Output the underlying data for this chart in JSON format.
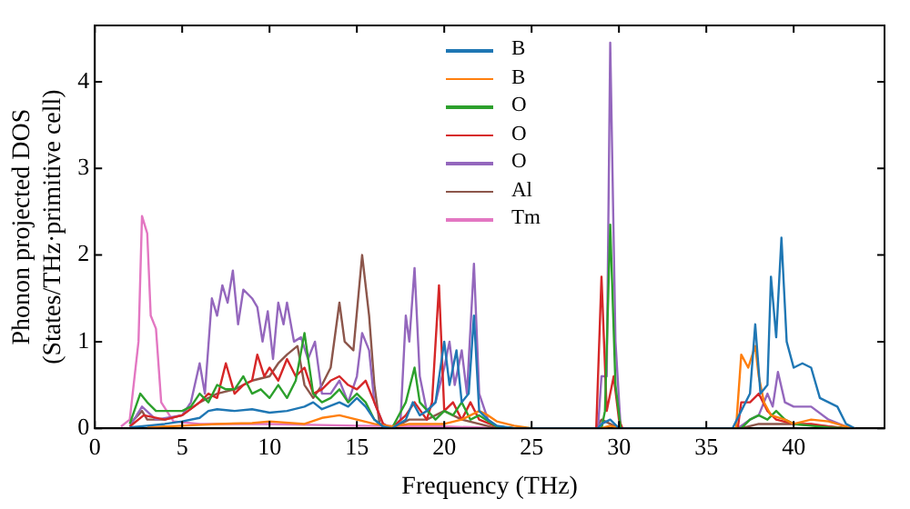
{
  "chart_data": {
    "type": "line",
    "xlabel": "Frequency (THz)",
    "ylabel": "Phonon projected DOS\n(States/THz·primitive cell)",
    "xlim": [
      0,
      45.2
    ],
    "ylim": [
      0,
      4.65
    ],
    "xticks": [
      0,
      5,
      10,
      15,
      20,
      25,
      30,
      35,
      40
    ],
    "yticks": [
      0,
      1,
      2,
      3,
      4
    ],
    "legend": "top",
    "grid": false,
    "marker": "none",
    "line_style": "solid",
    "series": [
      {
        "name": "B",
        "color": "#1f77b4",
        "x": [
          2,
          3,
          4,
          5,
          6,
          6.5,
          7,
          8,
          9,
          10,
          11,
          12,
          12.5,
          13,
          14,
          14.5,
          15,
          15.5,
          16,
          16.5,
          17,
          17.8,
          18.2,
          18.6,
          19,
          19.5,
          20,
          20.3,
          20.7,
          21,
          21.4,
          21.7,
          22,
          22.5,
          23,
          24,
          28.8,
          29,
          29.5,
          30,
          36.5,
          37,
          37.5,
          37.8,
          38.1,
          38.5,
          38.7,
          39,
          39.3,
          39.6,
          40,
          40.5,
          41,
          41.5,
          42,
          42.5,
          43,
          43.5
        ],
        "values": [
          0.01,
          0.03,
          0.05,
          0.08,
          0.12,
          0.2,
          0.22,
          0.2,
          0.22,
          0.18,
          0.2,
          0.25,
          0.3,
          0.22,
          0.3,
          0.25,
          0.35,
          0.25,
          0.1,
          0.02,
          0,
          0.1,
          0.3,
          0.15,
          0.2,
          0.3,
          1.0,
          0.5,
          0.9,
          0.3,
          0.4,
          1.3,
          0.2,
          0.1,
          0.03,
          0,
          0,
          0.05,
          0.1,
          0,
          0,
          0.2,
          0.4,
          1.2,
          0.4,
          0.5,
          1.75,
          1.05,
          2.2,
          1.0,
          0.7,
          0.75,
          0.7,
          0.35,
          0.3,
          0.25,
          0.05,
          0
        ]
      },
      {
        "name": "B",
        "color": "#ff7f0e",
        "x": [
          3,
          5,
          7,
          9,
          10,
          12,
          13,
          14,
          15,
          16,
          17,
          18,
          20,
          21,
          22,
          22.5,
          23,
          24,
          25,
          29,
          29.5,
          30,
          36.7,
          37,
          37.4,
          37.8,
          38,
          38.3,
          38.7,
          39.5,
          40,
          41,
          42,
          43,
          43.5
        ],
        "values": [
          0.01,
          0.03,
          0.05,
          0.06,
          0.08,
          0.05,
          0.12,
          0.15,
          0.1,
          0.05,
          0.02,
          0.05,
          0.05,
          0.1,
          0.2,
          0.15,
          0.08,
          0.03,
          0,
          0,
          0.03,
          0,
          0,
          0.85,
          0.7,
          0.95,
          0.6,
          0.3,
          0.15,
          0.1,
          0.05,
          0.1,
          0.08,
          0.02,
          0
        ]
      },
      {
        "name": "O",
        "color": "#2ca02c",
        "x": [
          2,
          2.6,
          3,
          3.5,
          4,
          5,
          5.5,
          6,
          6.5,
          7,
          7.5,
          8,
          8.5,
          9,
          9.5,
          10,
          10.5,
          11,
          11.5,
          12,
          12.5,
          13,
          13.5,
          14,
          14.5,
          15,
          15.5,
          16,
          16.5,
          17,
          17.8,
          18.3,
          18.6,
          19.5,
          20,
          20.5,
          21,
          21.5,
          22,
          23,
          24,
          29,
          29.2,
          29.5,
          29.8,
          30.1,
          37,
          37.5,
          38,
          38.5,
          39,
          39.5,
          40,
          41,
          42,
          43
        ],
        "values": [
          0.05,
          0.4,
          0.3,
          0.2,
          0.2,
          0.2,
          0.25,
          0.4,
          0.3,
          0.5,
          0.45,
          0.45,
          0.6,
          0.4,
          0.45,
          0.35,
          0.5,
          0.35,
          0.55,
          1.1,
          0.4,
          0.3,
          0.35,
          0.45,
          0.3,
          0.4,
          0.3,
          0.1,
          0.02,
          0,
          0.3,
          0.7,
          0.3,
          0.1,
          0.2,
          0.15,
          0.3,
          0.1,
          0.15,
          0.02,
          0,
          0,
          0.2,
          2.35,
          0.5,
          0,
          0,
          0.1,
          0.15,
          0.1,
          0.2,
          0.1,
          0.05,
          0.03,
          0.01,
          0
        ]
      },
      {
        "name": "O",
        "color": "#d62728",
        "x": [
          2,
          2.8,
          4,
          5,
          6,
          6.5,
          7,
          7.5,
          8,
          8.5,
          9,
          9.3,
          9.7,
          10,
          10.5,
          11,
          11.5,
          12,
          12.5,
          13,
          13.5,
          14,
          14.5,
          15,
          15.5,
          16,
          16.5,
          17,
          17.8,
          18.3,
          19,
          19.3,
          19.7,
          20,
          20.5,
          21,
          21.5,
          22,
          23,
          24,
          28.7,
          29,
          29.3,
          29.7,
          30,
          30.2,
          36.8,
          37,
          37.5,
          38,
          38.5,
          39,
          40,
          41,
          42,
          43
        ],
        "values": [
          0.02,
          0.15,
          0.1,
          0.15,
          0.3,
          0.4,
          0.35,
          0.75,
          0.4,
          0.5,
          0.55,
          0.85,
          0.6,
          0.7,
          0.55,
          0.8,
          0.6,
          0.7,
          0.4,
          0.45,
          0.55,
          0.6,
          0.5,
          0.45,
          0.55,
          0.3,
          0.05,
          0,
          0.15,
          0.3,
          0.1,
          0.3,
          1.65,
          0.2,
          0.3,
          0.1,
          0.3,
          0.1,
          0.02,
          0,
          0,
          1.75,
          0.2,
          0.6,
          0.1,
          0,
          0,
          0.3,
          0.3,
          0.4,
          0.2,
          0.1,
          0.05,
          0.05,
          0.02,
          0
        ]
      },
      {
        "name": "O",
        "color": "#9467bd",
        "x": [
          2,
          2.7,
          3.5,
          5,
          5.5,
          6,
          6.3,
          6.7,
          7,
          7.3,
          7.6,
          7.9,
          8.2,
          8.5,
          9,
          9.3,
          9.6,
          9.9,
          10.2,
          10.5,
          10.8,
          11,
          11.4,
          11.8,
          12.2,
          12.6,
          13,
          13.5,
          14,
          14.5,
          15,
          15.3,
          15.7,
          16,
          16.5,
          17,
          17.5,
          17.8,
          18,
          18.3,
          18.6,
          19,
          19.5,
          20,
          20.3,
          20.6,
          21,
          21.3,
          21.7,
          22,
          22.5,
          23,
          24,
          28.8,
          29,
          29.3,
          29.5,
          29.8,
          30.1,
          36.8,
          37.5,
          38,
          38.5,
          38.8,
          39.1,
          39.5,
          40,
          41,
          42,
          43
        ],
        "values": [
          0.02,
          0.25,
          0.1,
          0.15,
          0.3,
          0.75,
          0.4,
          1.5,
          1.3,
          1.65,
          1.45,
          1.82,
          1.2,
          1.6,
          1.5,
          1.4,
          1.0,
          1.35,
          0.8,
          1.45,
          1.2,
          1.45,
          1.0,
          1.05,
          0.8,
          1.0,
          0.4,
          0.4,
          0.55,
          0.3,
          0.6,
          1.1,
          0.9,
          0.3,
          0.05,
          0,
          0.1,
          1.3,
          1.0,
          1.85,
          0.6,
          0.2,
          0.3,
          0.7,
          1.0,
          0.5,
          0.9,
          0.4,
          1.9,
          0.4,
          0.1,
          0.02,
          0,
          0,
          0.6,
          0.6,
          4.45,
          1.0,
          0,
          0,
          0.1,
          0.15,
          0.4,
          0.25,
          0.65,
          0.3,
          0.25,
          0.25,
          0.1,
          0.02
        ]
      },
      {
        "name": "Al",
        "color": "#8c564b",
        "x": [
          2,
          2.7,
          3,
          4,
          5,
          6,
          7,
          8,
          9,
          10,
          10.5,
          11,
          11.6,
          12,
          12.5,
          13,
          13.5,
          14,
          14.3,
          14.8,
          15.3,
          15.7,
          16,
          16.3,
          17,
          18,
          19,
          20,
          21,
          22,
          23,
          28.7,
          29,
          29.5,
          30,
          37,
          38,
          40,
          42,
          43
        ],
        "values": [
          0.05,
          0.2,
          0.1,
          0.1,
          0.15,
          0.3,
          0.4,
          0.45,
          0.55,
          0.6,
          0.75,
          0.85,
          0.95,
          0.5,
          0.35,
          0.5,
          0.7,
          1.45,
          1.0,
          0.9,
          2.0,
          1.3,
          0.5,
          0.05,
          0,
          0.1,
          0.1,
          0.2,
          0.1,
          0.05,
          0,
          0,
          0.1,
          0.05,
          0,
          0,
          0.05,
          0.05,
          0.02,
          0
        ]
      },
      {
        "name": "Tm",
        "color": "#e377c2",
        "x": [
          1.5,
          2,
          2.5,
          2.7,
          3.0,
          3.2,
          3.5,
          3.8,
          4.5,
          6,
          10,
          15,
          20,
          22,
          23
        ],
        "values": [
          0.02,
          0.1,
          1.0,
          2.45,
          2.25,
          1.3,
          1.15,
          0.3,
          0.08,
          0.05,
          0.05,
          0.03,
          0.02,
          0.01,
          0
        ]
      }
    ]
  }
}
